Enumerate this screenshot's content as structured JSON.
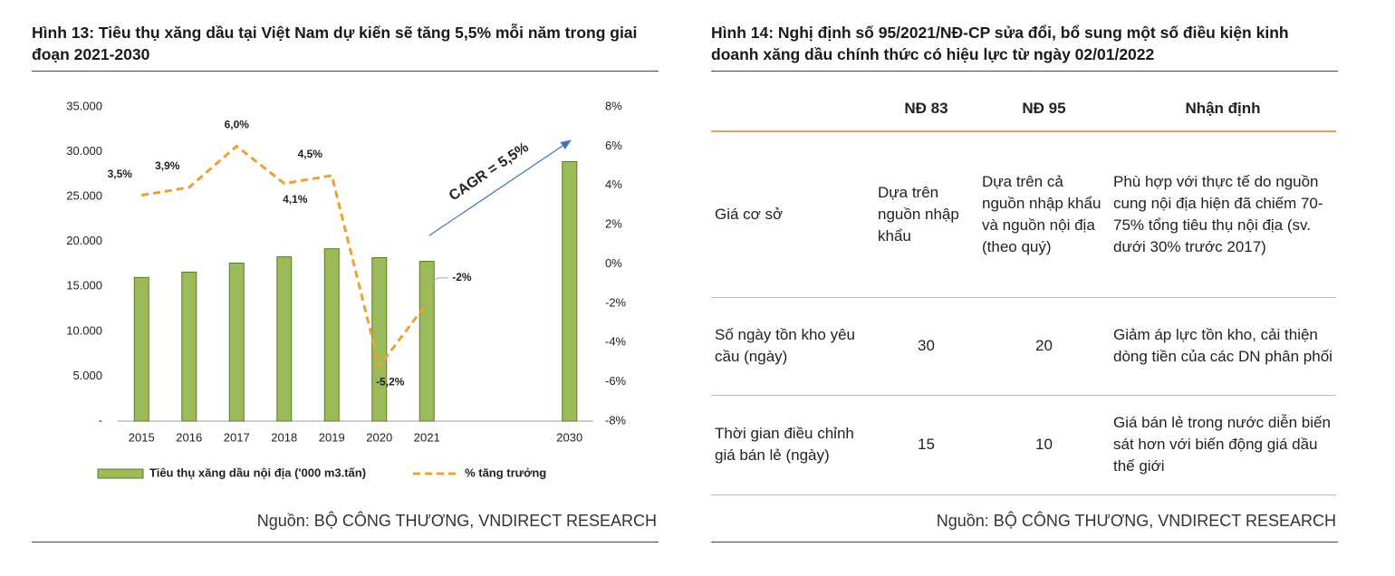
{
  "chart_data": {
    "type": "bar-line",
    "title": "Hình 13: Tiêu thụ xăng dầu tại Việt Nam dự kiến sẽ tăng 5,5% mỗi năm trong giai đoạn 2021-2030",
    "categories": [
      "2015",
      "2016",
      "2017",
      "2018",
      "2019",
      "2020",
      "2021",
      null,
      null,
      "2030"
    ],
    "series": [
      {
        "name": "Tiêu thụ xăng dầu nội địa ('000 m3.tấn)",
        "color": "#9bbb59",
        "type": "bar",
        "values": [
          16000,
          16600,
          17600,
          18300,
          19200,
          18200,
          17800,
          null,
          null,
          28900
        ]
      },
      {
        "name": "% tăng trưởng",
        "color": "#f0a030",
        "type": "line",
        "dashed": true,
        "axis": "y2",
        "values": [
          3.5,
          3.9,
          6.0,
          4.1,
          4.5,
          -5.2,
          -2,
          null,
          null,
          null
        ],
        "value_labels": [
          "3,5%",
          "3,9%",
          "6,0%",
          "4,1%",
          "4,5%",
          "-5,2%",
          "-2%",
          null,
          null,
          null
        ]
      }
    ],
    "ylim": [
      0,
      35000
    ],
    "yticks": [
      {
        "value": 0,
        "label": "-"
      },
      {
        "value": 5000,
        "label": "5.000"
      },
      {
        "value": 10000,
        "label": "10.000"
      },
      {
        "value": 15000,
        "label": "15.000"
      },
      {
        "value": 20000,
        "label": "20.000"
      },
      {
        "value": 25000,
        "label": "25.000"
      },
      {
        "value": 30000,
        "label": "30.000"
      },
      {
        "value": 35000,
        "label": "35.000"
      }
    ],
    "y2lim": [
      -8,
      8
    ],
    "y2ticks": [
      {
        "value": -8,
        "label": "-8%"
      },
      {
        "value": -6,
        "label": "-6%"
      },
      {
        "value": -4,
        "label": "-4%"
      },
      {
        "value": -2,
        "label": "-2%"
      },
      {
        "value": 0,
        "label": "0%"
      },
      {
        "value": 2,
        "label": "2%"
      },
      {
        "value": 4,
        "label": "4%"
      },
      {
        "value": 6,
        "label": "6%"
      },
      {
        "value": 8,
        "label": "8%"
      }
    ],
    "annotation": "CAGR = 5,5%",
    "legend": "bottom",
    "grid": false,
    "source": "Nguồn: BỘ CÔNG THƯƠNG, VNDIRECT RESEARCH"
  },
  "table": {
    "title": "Hình 14: Nghị định số 95/2021/NĐ-CP sửa đổi, bổ sung một số điều kiện kinh doanh xăng dầu chính thức có hiệu lực từ ngày 02/01/2022",
    "columns": [
      "NĐ 83",
      "NĐ 95",
      "Nhận định"
    ],
    "rows": [
      [
        "Giá cơ sở",
        "Dựa trên nguồn nhập khẩu",
        "Dựa trên cả nguồn nhập khẩu và nguồn nội địa (theo quý)",
        "Phù hợp với thực tế do nguồn cung nội địa hiện đã chiếm 70-75% tổng tiêu thụ nội địa (sv. dưới 30% trước 2017)"
      ],
      [
        "Số ngày tồn kho yêu cầu (ngày)",
        30,
        20,
        "Giảm áp lực tồn kho, cải thiện dòng tiền của các DN phân phối"
      ],
      [
        "Thời gian điều chỉnh giá bán lẻ (ngày)",
        15,
        10,
        "Giá bán lẻ trong nước diễn biến sát hơn với biến động giá dầu thế giới"
      ]
    ],
    "source": "Nguồn: BỘ CÔNG THƯƠNG, VNDIRECT RESEARCH"
  }
}
